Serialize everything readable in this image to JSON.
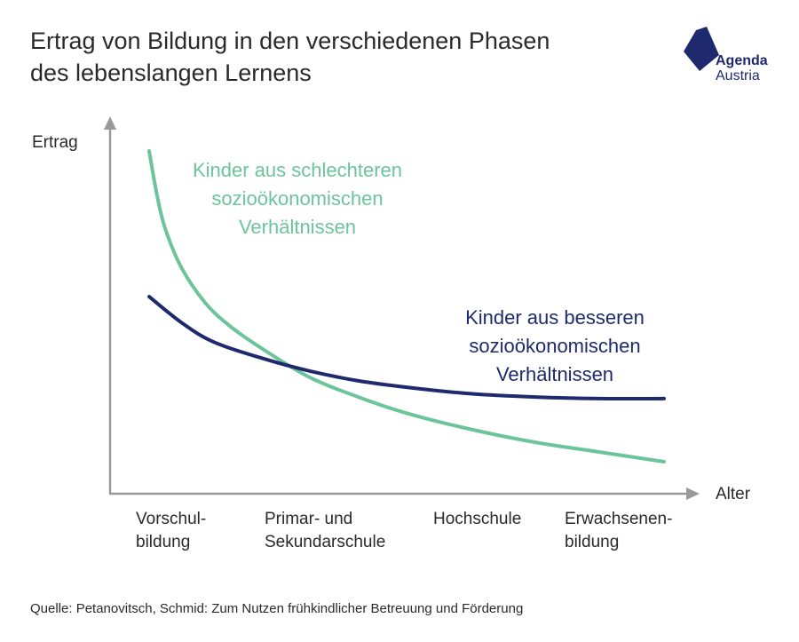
{
  "title": {
    "line1": "Ertrag von Bildung in den verschiedenen Phasen",
    "line2": "des lebenslangen Lernens"
  },
  "logo": {
    "line1": "Agenda",
    "line2": "Austria",
    "color": "#1f2a6e"
  },
  "source": "Quelle: Petanovitsch, Schmid: Zum Nutzen frühkindlicher Betreuung und Förderung",
  "chart_data": {
    "type": "line",
    "xlabel": "Alter",
    "ylabel": "Ertrag",
    "grid": false,
    "legend": "none",
    "categories": [
      {
        "line1": "Vorschul-",
        "line2": "bildung"
      },
      {
        "line1": "Primar- und",
        "line2": "Sekundarschule"
      },
      {
        "line1": "Hochschule",
        "line2": ""
      },
      {
        "line1": "Erwachsenen-",
        "line2": "bildung"
      }
    ],
    "series": [
      {
        "name_lines": [
          "Kinder aus schlechteren",
          "sozioökonomischen",
          "Verhältnissen"
        ],
        "color": "#6cc59a",
        "x": [
          0,
          0.05,
          0.1,
          0.2,
          0.35,
          0.5,
          0.7,
          1.0,
          1.3,
          1.6,
          2.0,
          2.4,
          2.8,
          3.2
        ],
        "y": [
          100,
          86,
          76,
          64,
          53,
          46,
          39,
          30,
          24,
          19,
          14,
          10,
          7,
          4
        ]
      },
      {
        "name_lines": [
          "Kinder aus besseren",
          "sozioökonomischen",
          "Verhältnissen"
        ],
        "color": "#1f2a6e",
        "x": [
          0,
          0.2,
          0.4,
          0.7,
          1.0,
          1.3,
          1.6,
          2.0,
          2.4,
          2.8,
          3.2
        ],
        "y": [
          55,
          47,
          41,
          36,
          32,
          29,
          27,
          25,
          24,
          23.5,
          23.5
        ]
      }
    ]
  }
}
